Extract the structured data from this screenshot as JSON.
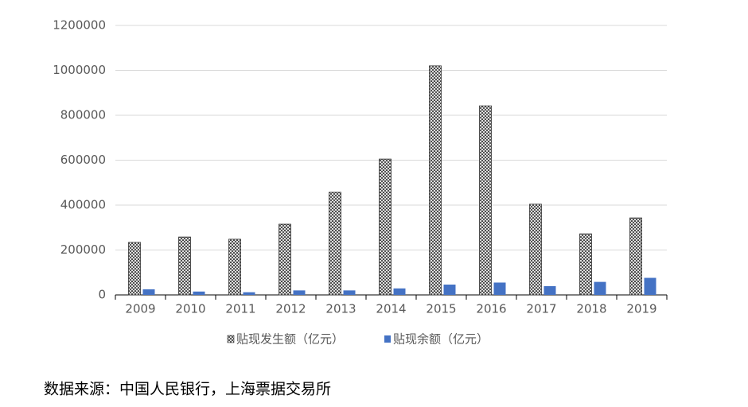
{
  "chart_data": {
    "type": "bar",
    "categories": [
      "2009",
      "2010",
      "2011",
      "2012",
      "2013",
      "2014",
      "2015",
      "2016",
      "2017",
      "2018",
      "2019"
    ],
    "series": [
      {
        "name": "贴现发生额（亿元）",
        "color": "#333333",
        "pattern": true,
        "values": [
          234000,
          258000,
          248000,
          315000,
          457000,
          605000,
          1020000,
          842000,
          404000,
          272000,
          343000
        ]
      },
      {
        "name": "贴现余额（亿元）",
        "color": "#4472c4",
        "values": [
          25000,
          15000,
          12000,
          20000,
          20000,
          29000,
          46000,
          55000,
          39000,
          58000,
          76000
        ]
      }
    ],
    "ylim": [
      0,
      1200000
    ],
    "yticks": [
      0,
      200000,
      400000,
      600000,
      800000,
      1000000,
      1200000
    ],
    "grid": true,
    "note": "数据来源：中国人民银行，上海票据交易所"
  }
}
